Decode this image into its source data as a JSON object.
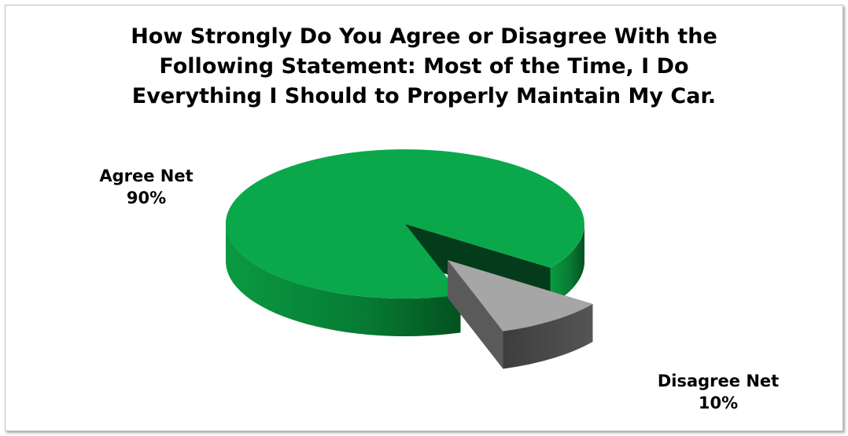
{
  "chart_data": {
    "type": "pie",
    "title": "How Strongly Do You Agree or Disagree With the\nFollowing Statement: Most of the Time, I Do\nEverything I Should to Properly Maintain My Car.",
    "slices": [
      {
        "label": "Agree Net",
        "value": 90,
        "value_label": "90%",
        "color": "#0aa84b",
        "exploded": false
      },
      {
        "label": "Disagree Net",
        "value": 10,
        "value_label": "10%",
        "color": "#a6a6a6",
        "exploded": true
      }
    ],
    "style": "3d-exploded",
    "legend": "none"
  }
}
